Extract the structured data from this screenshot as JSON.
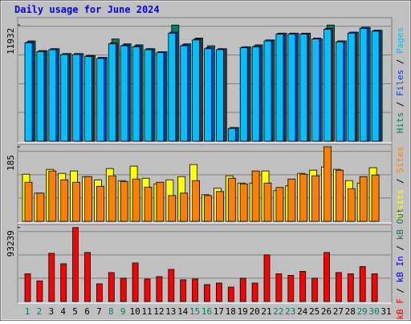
{
  "chart_data": [
    {
      "type": "bar",
      "title": "Daily usage for June 2024",
      "legend_separator": " / ",
      "ylim": [
        0,
        12200
      ],
      "yticks": [
        11932
      ],
      "series": [
        {
          "name": "Hits",
          "color": "#00805c",
          "values": [
            10300,
            9300,
            9500,
            9000,
            9000,
            8800,
            8600,
            10500,
            10000,
            9900,
            9500,
            9200,
            11932,
            10000,
            10600,
            9800,
            9500,
            1400,
            9700,
            9900,
            10400,
            11100,
            11100,
            11100,
            10500,
            11932,
            10300,
            11200,
            11700,
            11400,
            null
          ]
        },
        {
          "name": "Files",
          "color": "#0040ff",
          "values": [
            10200,
            9300,
            9500,
            9000,
            9000,
            8800,
            8600,
            10100,
            9900,
            9800,
            9500,
            9200,
            11200,
            9900,
            10500,
            9600,
            9500,
            1400,
            9700,
            9800,
            10400,
            11100,
            11100,
            11100,
            10600,
            11600,
            10300,
            11200,
            11700,
            11400,
            null
          ]
        },
        {
          "name": "Pages",
          "color": "#00c0ff",
          "values": [
            10100,
            9200,
            9400,
            8900,
            8900,
            8700,
            8500,
            10000,
            9800,
            9700,
            9400,
            9100,
            11100,
            9800,
            10400,
            9500,
            9400,
            1300,
            9600,
            9700,
            10300,
            11000,
            11000,
            11000,
            10500,
            11500,
            10200,
            11100,
            11600,
            11300,
            null
          ]
        }
      ]
    },
    {
      "type": "bar",
      "legend_separator": " / ",
      "ylim": [
        0,
        187
      ],
      "yticks": [
        185
      ],
      "series": [
        {
          "name": "Visits",
          "color": "#ffff00",
          "values": [
            117,
            70,
            129,
            119,
            125,
            111,
            103,
            131,
            101,
            137,
            107,
            93,
            103,
            111,
            141,
            66,
            82,
            113,
            95,
            95,
            125,
            76,
            88,
            119,
            127,
            135,
            129,
            101,
            95,
            133,
            null
          ]
        },
        {
          "name": "Sites",
          "color": "#ff8000",
          "values": [
            97,
            70,
            125,
            103,
            97,
            111,
            87,
            113,
            99,
            105,
            85,
            97,
            64,
            70,
            101,
            64,
            74,
            107,
            93,
            125,
            95,
            84,
            105,
            117,
            113,
            185,
            127,
            81,
            111,
            115,
            null
          ]
        }
      ]
    },
    {
      "type": "bar",
      "legend_separator": " / ",
      "ylim": [
        0,
        95000
      ],
      "yticks": [
        93239
      ],
      "categories": [
        "1",
        "2",
        "3",
        "4",
        "5",
        "6",
        "7",
        "8",
        "9",
        "10",
        "11",
        "12",
        "13",
        "14",
        "15",
        "16",
        "17",
        "18",
        "19",
        "20",
        "21",
        "22",
        "23",
        "24",
        "25",
        "26",
        "27",
        "28",
        "29",
        "30",
        "31"
      ],
      "weekend_color": "#00805c",
      "weekends": [
        0,
        1,
        7,
        8,
        14,
        15,
        21,
        22,
        28,
        29
      ],
      "series": [
        {
          "name": "kB F",
          "color": "#ff0000",
          "values": [
            35000,
            26000,
            60800,
            47600,
            93239,
            61800,
            22300,
            36500,
            29400,
            48600,
            28400,
            31400,
            40500,
            27400,
            28400,
            21300,
            23300,
            18200,
            29400,
            23300,
            58800,
            35000,
            33000,
            38000,
            29400,
            61800,
            36500,
            35000,
            44100,
            35000,
            null
          ]
        },
        {
          "name": "kB In",
          "color": "#0000ff"
        },
        {
          "name": "kB Out",
          "color": "#00805c"
        }
      ]
    }
  ]
}
